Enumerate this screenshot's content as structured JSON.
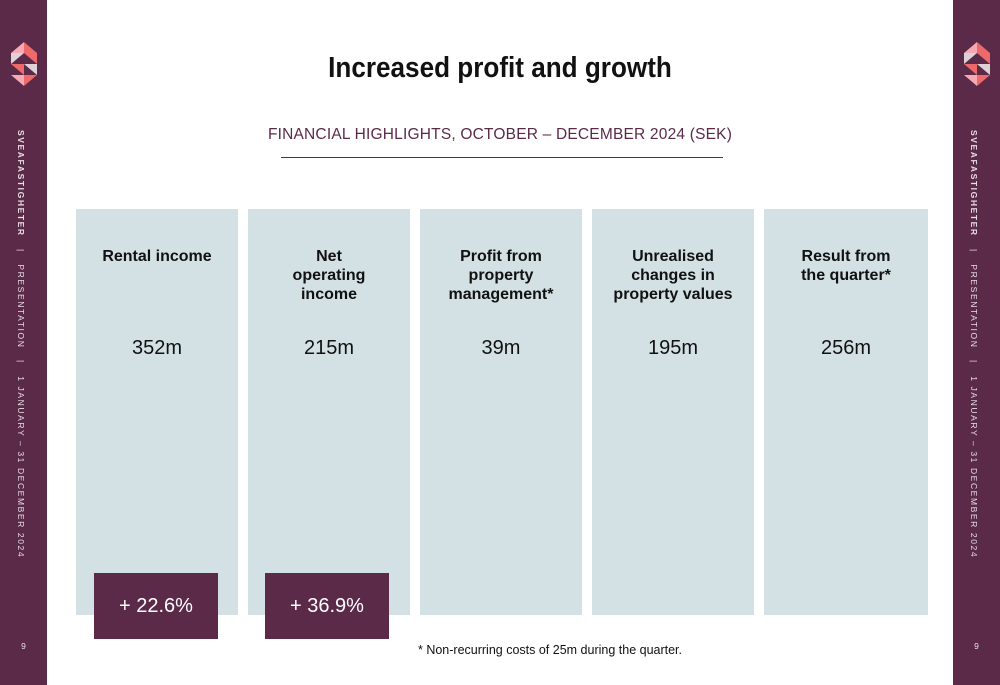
{
  "sidebar": {
    "brand": "SVEAFASTIGHETER",
    "separator": "|",
    "section": "PRESENTATION",
    "period": "1 JANUARY – 31 DECEMBER 2024",
    "page_number": "9"
  },
  "header": {
    "title": "Increased profit and growth",
    "subtitle": "FINANCIAL HIGHLIGHTS, OCTOBER – DECEMBER 2024 (SEK)"
  },
  "highlights": [
    {
      "label": "Rental income",
      "value": "352m",
      "change": "+ 22.6%"
    },
    {
      "label": "Net operating income",
      "value": "215m",
      "change": "+ 36.9%"
    },
    {
      "label": "Profit from property management*",
      "value": "39m"
    },
    {
      "label": "Unrealised changes in property values",
      "value": "195m"
    },
    {
      "label": "Result from the quarter*",
      "value": "256m"
    }
  ],
  "footnote": "* Non-recurring costs of 25m during the quarter.",
  "colors": {
    "brand_purple": "#5a2a48",
    "card_background": "#d3e1e4",
    "logo_coral": "#ee6a6a",
    "logo_pink": "#f4a9b4",
    "logo_light": "#ddd2d8"
  }
}
